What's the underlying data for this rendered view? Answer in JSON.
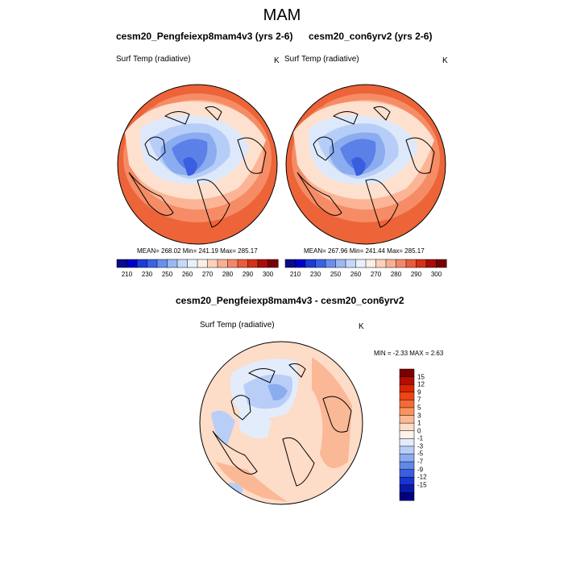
{
  "main_title": "MAM",
  "colors": {
    "warm_1": "#fde0cd",
    "warm_2": "#fbb596",
    "warm_3": "#f58c66",
    "warm_4": "#ec6438",
    "cool_1": "#dde9fb",
    "cool_2": "#b6cef7",
    "cool_3": "#8cacf0",
    "cool_4": "#5b80e8",
    "cool_5": "#3a5ee0",
    "coast": "#000000"
  },
  "panels": [
    {
      "title": "cesm20_Pengfeiexp8mam4v3 (yrs 2-6)",
      "variable_label": "Surf Temp (radiative)",
      "units_label": "K",
      "stats_text": "MEAN= 268.02  Min= 241.19  Max= 285.17"
    },
    {
      "title": "cesm20_con6yrv2 (yrs 2-6)",
      "variable_label": "Surf Temp (radiative)",
      "units_label": "K",
      "stats_text": "MEAN= 267.96  Min= 241.44  Max= 285.17"
    }
  ],
  "abs_colorbar": {
    "ticks": [
      "210",
      "230",
      "250",
      "260",
      "270",
      "280",
      "290",
      "300"
    ],
    "colors": [
      "#0a0a8c",
      "#0000c8",
      "#1a3cd8",
      "#3a62e6",
      "#6a90ee",
      "#9ab8f4",
      "#c4d8fa",
      "#e8f0fd",
      "#fdeee4",
      "#fcd2bc",
      "#f9b092",
      "#f4876a",
      "#ea5c3e",
      "#d63018",
      "#a80e06",
      "#780000"
    ]
  },
  "diff_panel": {
    "title": "cesm20_Pengfeiexp8mam4v3 - cesm20_con6yrv2",
    "variable_label": "Surf Temp (radiative)",
    "units_label": "K",
    "stats_text": "MIN =  -2.33 MAX =   2.63"
  },
  "diff_colorbar": {
    "ticks": [
      "15",
      "12",
      "9",
      "7",
      "5",
      "3",
      "1",
      "0",
      "-1",
      "-3",
      "-5",
      "-7",
      "-9",
      "-12",
      "-15"
    ],
    "colors": [
      "#7a0000",
      "#b30e00",
      "#d92600",
      "#f04412",
      "#f56a38",
      "#f9935e",
      "#fbb896",
      "#fddcc8",
      "#fef2ea",
      "#e2ecfb",
      "#b8cef7",
      "#8cacf0",
      "#6088e8",
      "#3a5ee0",
      "#1a34d0",
      "#0a1aa8",
      "#000080"
    ]
  }
}
